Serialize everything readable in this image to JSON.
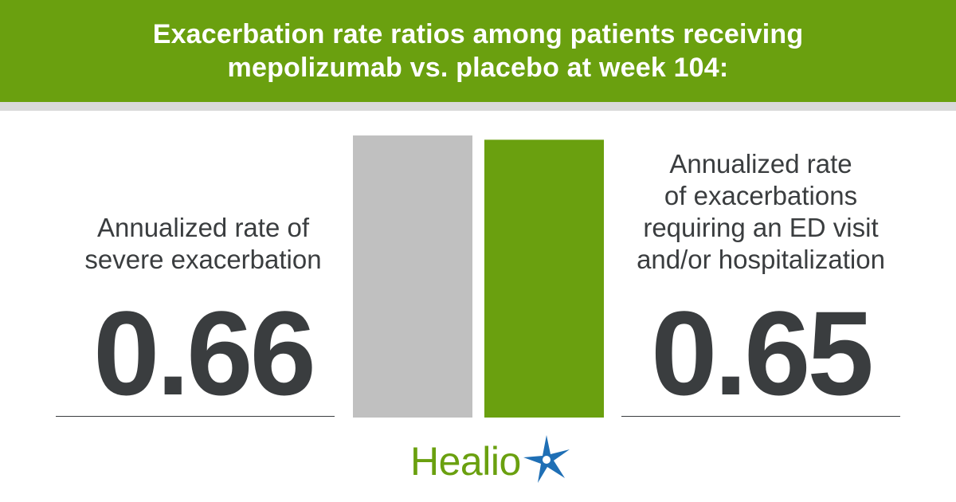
{
  "banner": {
    "title_line1": "Exacerbation rate ratios among patients receiving",
    "title_line2": "mepolizumab vs. placebo at week 104:"
  },
  "left_stat": {
    "label_line1": "Annualized rate of",
    "label_line2": "severe exacerbation",
    "value": "0.66"
  },
  "right_stat": {
    "label_line1": "Annualized rate",
    "label_line2": "of exacerbations",
    "label_line3": "requiring an ED visit",
    "label_line4": "and/or hospitalization",
    "value": "0.65"
  },
  "chart_data": {
    "type": "bar",
    "categories": [
      "Annualized rate of severe exacerbation",
      "Annualized rate of exacerbations requiring an ED visit and/or hospitalization"
    ],
    "values": [
      0.66,
      0.65
    ],
    "colors": [
      "#c0c0c0",
      "#6aa00f"
    ],
    "ylim": [
      0,
      0.66
    ]
  },
  "logo": {
    "wordmark": "Healio",
    "color": "#6aa00f",
    "star_color": "#1f6fb5"
  }
}
